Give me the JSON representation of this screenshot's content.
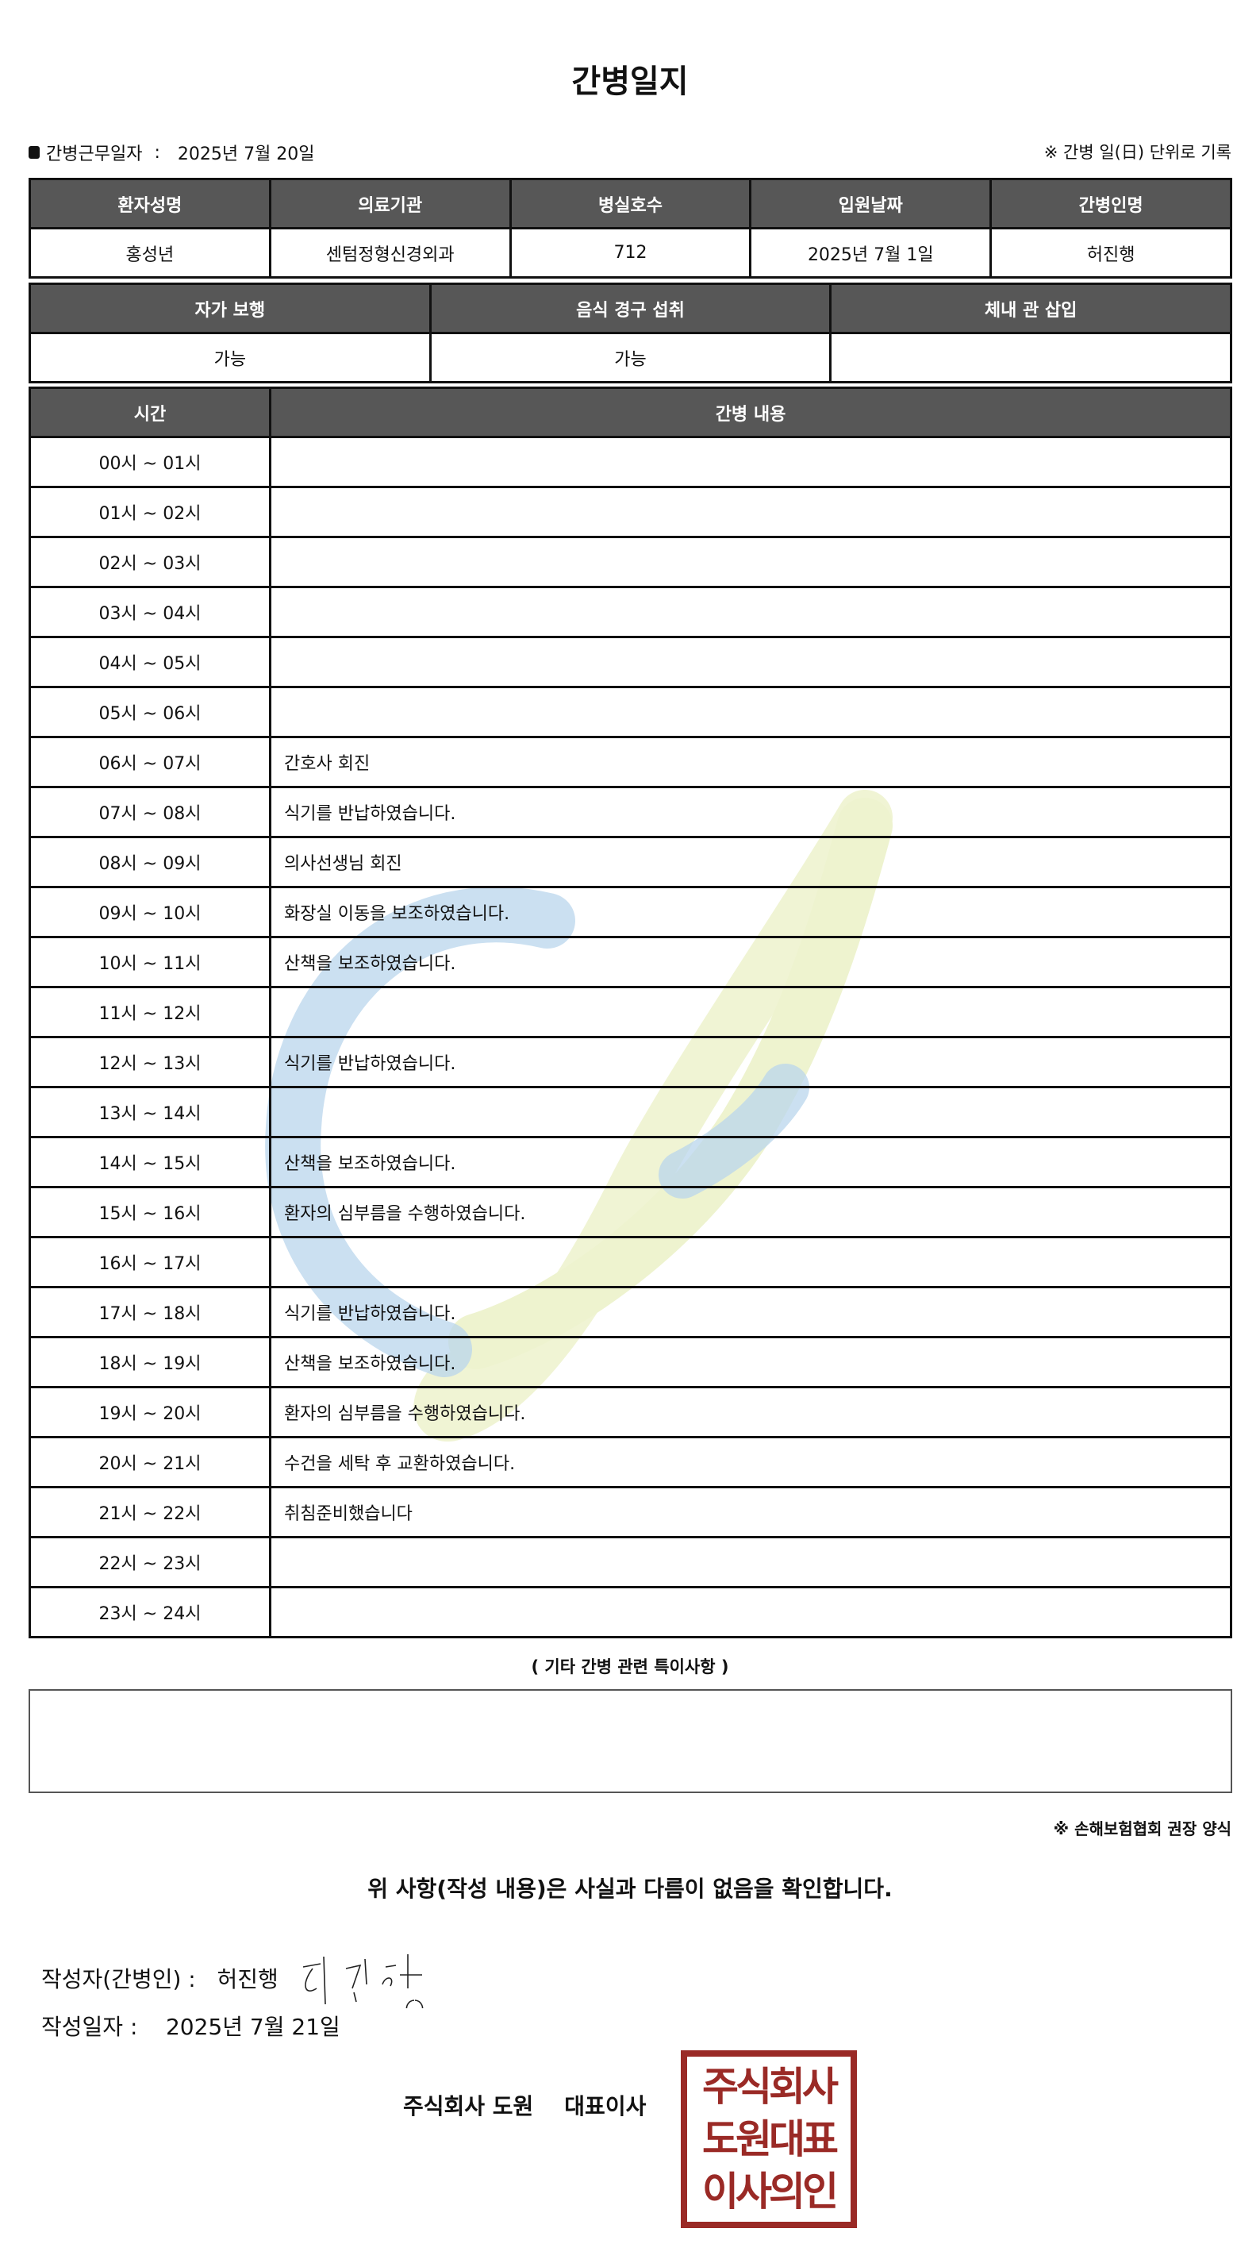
{
  "title": "간병일지",
  "work_date_label": "간병근무일자",
  "work_date": "2025년 7월 20일",
  "record_note": "※ 간병 일(日) 단위로 기록",
  "info": {
    "headers": [
      "환자성명",
      "의료기관",
      "병실호수",
      "입원날짜",
      "간병인명"
    ],
    "values": [
      "홍성년",
      "센텀정형신경외과",
      "712",
      "2025년 7월 1일",
      "허진행"
    ]
  },
  "status": {
    "headers": [
      "자가 보행",
      "음식 경구 섭취",
      "체내 관 삽입"
    ],
    "values": [
      "가능",
      "가능",
      ""
    ]
  },
  "log": {
    "headers": [
      "시간",
      "간병 내용"
    ],
    "rows": [
      {
        "time": "00시 ~ 01시",
        "content": ""
      },
      {
        "time": "01시 ~ 02시",
        "content": ""
      },
      {
        "time": "02시 ~ 03시",
        "content": ""
      },
      {
        "time": "03시 ~ 04시",
        "content": ""
      },
      {
        "time": "04시 ~ 05시",
        "content": ""
      },
      {
        "time": "05시 ~ 06시",
        "content": ""
      },
      {
        "time": "06시 ~ 07시",
        "content": "간호사 회진"
      },
      {
        "time": "07시 ~ 08시",
        "content": "식기를 반납하였습니다."
      },
      {
        "time": "08시 ~ 09시",
        "content": "의사선생님 회진"
      },
      {
        "time": "09시 ~ 10시",
        "content": "화장실 이동을 보조하였습니다."
      },
      {
        "time": "10시 ~ 11시",
        "content": "산책을 보조하였습니다."
      },
      {
        "time": "11시 ~ 12시",
        "content": ""
      },
      {
        "time": "12시 ~ 13시",
        "content": "식기를 반납하였습니다."
      },
      {
        "time": "13시 ~ 14시",
        "content": ""
      },
      {
        "time": "14시 ~ 15시",
        "content": "산책을 보조하였습니다."
      },
      {
        "time": "15시 ~ 16시",
        "content": "환자의 심부름을 수행하였습니다."
      },
      {
        "time": "16시 ~ 17시",
        "content": ""
      },
      {
        "time": "17시 ~ 18시",
        "content": "식기를 반납하였습니다."
      },
      {
        "time": "18시 ~ 19시",
        "content": "산책을 보조하였습니다."
      },
      {
        "time": "19시 ~ 20시",
        "content": "환자의 심부름을 수행하였습니다."
      },
      {
        "time": "20시 ~ 21시",
        "content": "수건을 세탁 후 교환하였습니다."
      },
      {
        "time": "21시 ~ 22시",
        "content": "취침준비했습니다"
      },
      {
        "time": "22시 ~ 23시",
        "content": ""
      },
      {
        "time": "23시 ~ 24시",
        "content": ""
      }
    ]
  },
  "notes_title": "( 기타 간병 관련 특이사항 )",
  "notes": "",
  "footnote": "※ 손해보험협회 권장 양식",
  "confirm": "위 사항(작성 내용)은 사실과 다름이 없음을 확인합니다.",
  "writer_label": "작성자(간병인) :",
  "writer_name": "허진행",
  "signature": "허진행",
  "write_date_label": "작성일자 :",
  "write_date": "2025년 7월 21일",
  "company": "주식회사 도원    대표이사",
  "stamp_text": [
    "주식회사",
    "도원대표",
    "이사의인"
  ],
  "colors": {
    "header_bg": "#575757",
    "stamp": "#9a2a26",
    "watermark_blue": "#b9d6ec",
    "watermark_green": "#eef3cf"
  }
}
